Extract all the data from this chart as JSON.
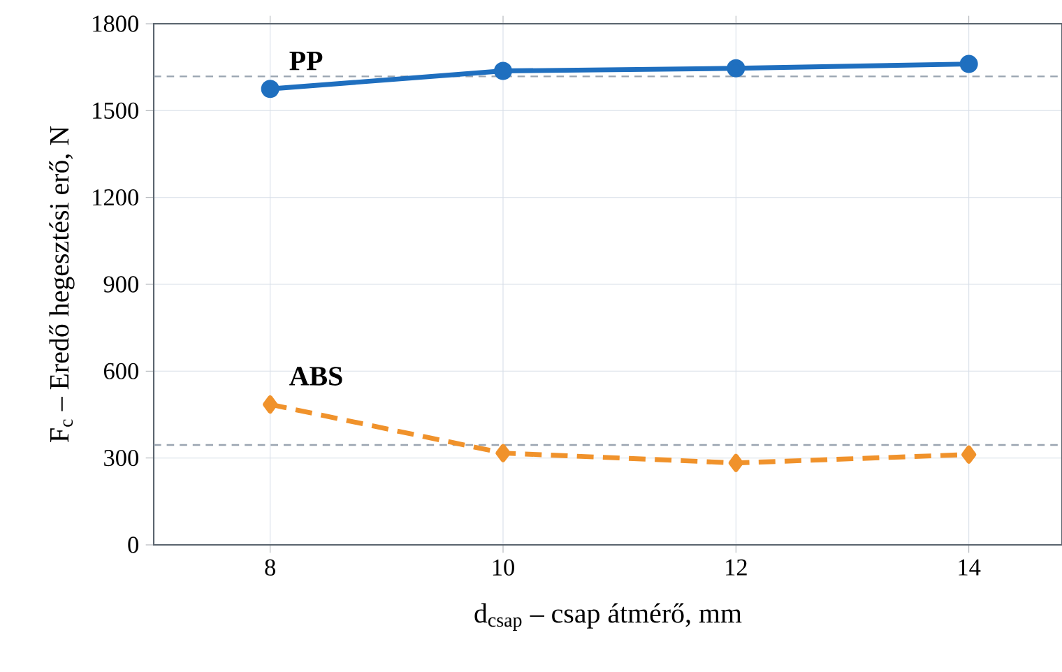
{
  "chart_data": {
    "type": "line",
    "xlabel": "d$_{csap}$ – csap átmérő, mm",
    "ylabel": "F$_{c}$ – Eredő hegesztési erő, N",
    "x": [
      8,
      10,
      12,
      14
    ],
    "series": [
      {
        "name": "PP",
        "color": "#1f6fbf",
        "values": [
          1575,
          1637,
          1646,
          1661
        ],
        "marker": "circle",
        "line_style": "solid"
      },
      {
        "name": "ABS",
        "color": "#f0922b",
        "values": [
          485,
          317,
          283,
          312
        ],
        "marker": "diamond",
        "line_style": "dashed"
      }
    ],
    "xlim": [
      7,
      14.8
    ],
    "ylim": [
      0,
      1800
    ],
    "xticks": [
      8,
      10,
      12,
      14
    ],
    "yticks": [
      0,
      300,
      600,
      900,
      1200,
      1500,
      1800
    ],
    "grid": true,
    "ref_lines": [
      {
        "axis": "y",
        "value": 1618,
        "color": "#9aa5b1",
        "line_style": "dashed"
      },
      {
        "axis": "y",
        "value": 345,
        "color": "#9aa5b1",
        "line_style": "dashed"
      }
    ]
  }
}
